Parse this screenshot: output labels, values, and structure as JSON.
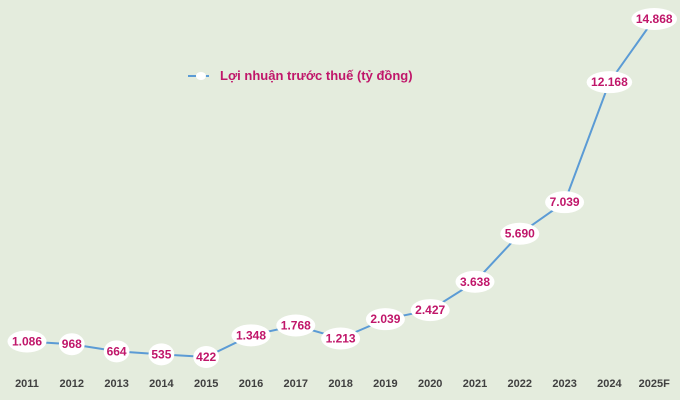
{
  "chart_data": {
    "type": "line",
    "categories": [
      "2011",
      "2012",
      "2013",
      "2014",
      "2015",
      "2016",
      "2017",
      "2018",
      "2019",
      "2020",
      "2021",
      "2022",
      "2023",
      "2024",
      "2025F"
    ],
    "series": [
      {
        "name": "Lợi nhuận trước thuế (tỷ đồng)",
        "values": [
          1086,
          968,
          664,
          535,
          422,
          1348,
          1768,
          1213,
          2039,
          2427,
          3638,
          5690,
          7039,
          12168,
          14868
        ],
        "labels": [
          "1.086",
          "968",
          "664",
          "535",
          "422",
          "1.348",
          "1.768",
          "1.213",
          "2.039",
          "2.427",
          "3.638",
          "5.690",
          "7.039",
          "12.168",
          "14.868"
        ]
      }
    ],
    "title": "",
    "xlabel": "",
    "ylabel": "",
    "grid": false,
    "legend_position": "top-left",
    "colors": {
      "line": "#5b9bd5",
      "label": "#c0166a",
      "marker": "#ffffff",
      "background": "#e4ecdd",
      "axis_text": "#404040"
    }
  }
}
